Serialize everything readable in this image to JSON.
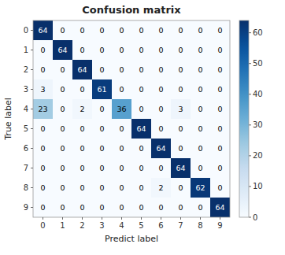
{
  "chart_data": {
    "type": "heatmap",
    "title": "Confusion matrix",
    "xlabel": "Predict label",
    "ylabel": "True label",
    "categories": [
      "0",
      "1",
      "2",
      "3",
      "4",
      "5",
      "6",
      "7",
      "8",
      "9"
    ],
    "values": [
      [
        64,
        0,
        0,
        0,
        0,
        0,
        0,
        0,
        0,
        0
      ],
      [
        0,
        64,
        0,
        0,
        0,
        0,
        0,
        0,
        0,
        0
      ],
      [
        0,
        0,
        64,
        0,
        0,
        0,
        0,
        0,
        0,
        0
      ],
      [
        3,
        0,
        0,
        61,
        0,
        0,
        0,
        0,
        0,
        0
      ],
      [
        23,
        0,
        2,
        0,
        36,
        0,
        0,
        3,
        0,
        0
      ],
      [
        0,
        0,
        0,
        0,
        0,
        64,
        0,
        0,
        0,
        0
      ],
      [
        0,
        0,
        0,
        0,
        0,
        0,
        64,
        0,
        0,
        0
      ],
      [
        0,
        0,
        0,
        0,
        0,
        0,
        0,
        64,
        0,
        0
      ],
      [
        0,
        0,
        0,
        0,
        0,
        0,
        2,
        0,
        62,
        0
      ],
      [
        0,
        0,
        0,
        0,
        0,
        0,
        0,
        0,
        0,
        64
      ]
    ],
    "color_range": [
      0,
      64
    ],
    "color_ticks": [
      0,
      10,
      20,
      30,
      40,
      50,
      60
    ],
    "data_labels": true
  }
}
